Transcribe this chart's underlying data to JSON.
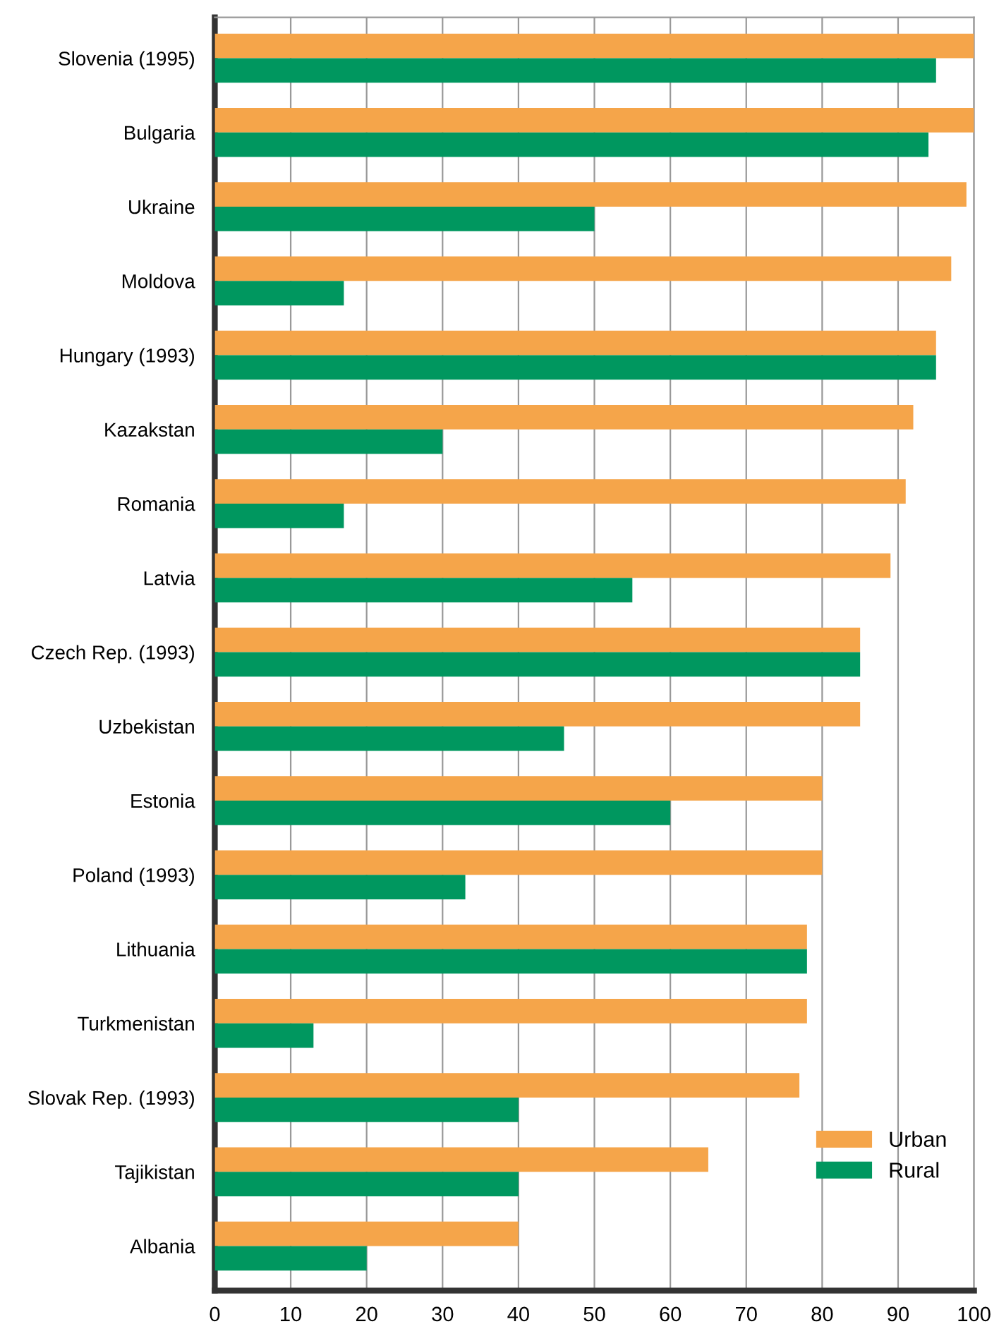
{
  "chart_data": {
    "type": "bar",
    "orientation": "horizontal",
    "categories": [
      "Slovenia (1995)",
      "Bulgaria",
      "Ukraine",
      "Moldova",
      "Hungary (1993)",
      "Kazakstan",
      "Romania",
      "Latvia",
      "Czech Rep. (1993)",
      "Uzbekistan",
      "Estonia",
      "Poland (1993)",
      "Lithuania",
      "Turkmenistan",
      "Slovak Rep. (1993)",
      "Tajikistan",
      "Albania"
    ],
    "series": [
      {
        "name": "Urban",
        "color": "#f5a54a",
        "values": [
          100,
          100,
          99,
          97,
          95,
          92,
          91,
          89,
          85,
          85,
          80,
          80,
          78,
          78,
          77,
          65,
          40
        ]
      },
      {
        "name": "Rural",
        "color": "#00975f",
        "values": [
          95,
          94,
          50,
          17,
          95,
          30,
          17,
          55,
          85,
          46,
          60,
          33,
          78,
          13,
          40,
          40,
          20
        ]
      }
    ],
    "xlim": [
      0,
      100
    ],
    "xticks": [
      0,
      10,
      20,
      30,
      40,
      50,
      60,
      70,
      80,
      90,
      100
    ],
    "grid": "x",
    "legend": "bottom right"
  }
}
